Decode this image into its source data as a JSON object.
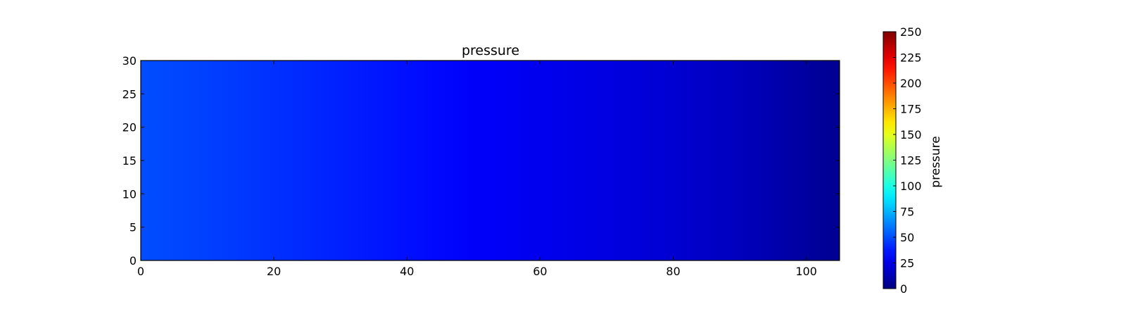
{
  "chart_data": {
    "type": "heatmap",
    "title": "pressure",
    "xlabel": "",
    "ylabel": "",
    "xlim": [
      0,
      105
    ],
    "ylim": [
      0,
      30
    ],
    "x_ticks": [
      0,
      20,
      40,
      60,
      80,
      100
    ],
    "y_ticks": [
      0,
      5,
      10,
      15,
      20,
      25,
      30
    ],
    "field": {
      "description_axis": "x",
      "x": [
        0,
        10,
        20,
        30,
        40,
        50,
        60,
        70,
        80,
        90,
        100,
        105
      ],
      "values": [
        50,
        47,
        43,
        39,
        35,
        30,
        27,
        24,
        20,
        15,
        8,
        4
      ]
    },
    "colorbar": {
      "label": "pressure",
      "colormap": "jet",
      "range": [
        0,
        250
      ],
      "ticks": [
        0,
        25,
        50,
        75,
        100,
        125,
        150,
        175,
        200,
        225,
        250
      ]
    },
    "grid": false
  }
}
